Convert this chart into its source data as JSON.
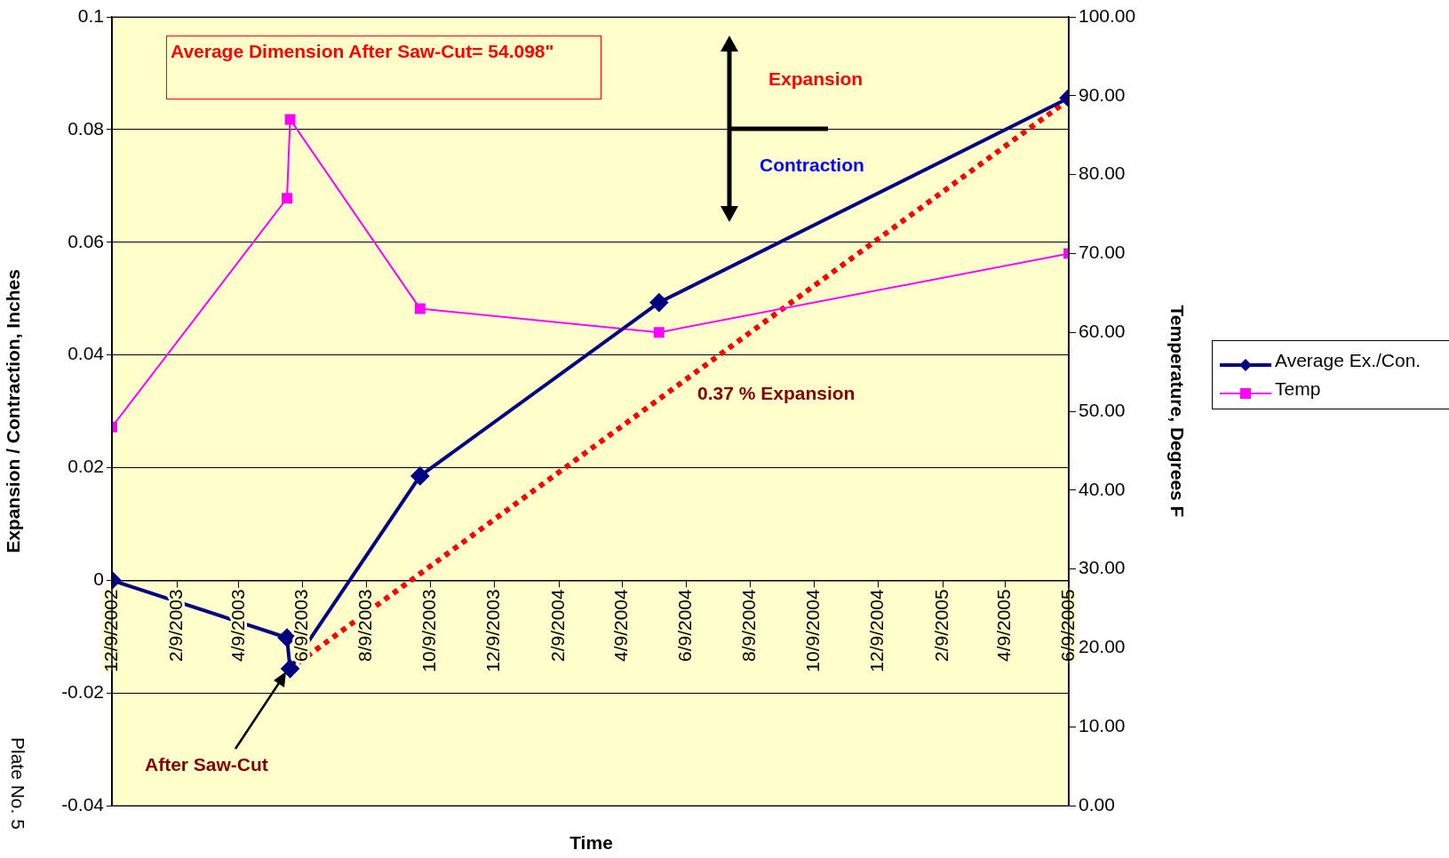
{
  "chart_data": {
    "type": "line",
    "xlabel": "Time",
    "ylabel": "Expansion / Contraction, Inches",
    "y2label": "Temperature, Degrees F",
    "annotations": [
      "Average Dimension After Saw-Cut= 54.098\"",
      "Expansion",
      "Contraction",
      "0.37 % Expansion",
      "After Saw-Cut",
      "Plate No. 5"
    ],
    "xlim": [
      "2002-12-09",
      "2005-06-09"
    ],
    "xticks": [
      {
        "value": "2002-12-09",
        "label": "12/9/2002"
      },
      {
        "value": "2003-02-09",
        "label": "2/9/2003"
      },
      {
        "value": "2003-04-09",
        "label": "4/9/2003"
      },
      {
        "value": "2003-06-09",
        "label": "6/9/2003"
      },
      {
        "value": "2003-08-09",
        "label": "8/9/2003"
      },
      {
        "value": "2003-10-09",
        "label": "10/9/2003"
      },
      {
        "value": "2003-12-09",
        "label": "12/9/2003"
      },
      {
        "value": "2004-02-09",
        "label": "2/9/2004"
      },
      {
        "value": "2004-04-09",
        "label": "4/9/2004"
      },
      {
        "value": "2004-06-09",
        "label": "6/9/2004"
      },
      {
        "value": "2004-08-09",
        "label": "8/9/2004"
      },
      {
        "value": "2004-10-09",
        "label": "10/9/2004"
      },
      {
        "value": "2004-12-09",
        "label": "12/9/2004"
      },
      {
        "value": "2005-02-09",
        "label": "2/9/2005"
      },
      {
        "value": "2005-04-09",
        "label": "4/9/2005"
      },
      {
        "value": "2005-06-09",
        "label": "6/9/2005"
      }
    ],
    "ylim": [
      -0.04,
      0.1
    ],
    "yticks": [
      -0.04,
      -0.02,
      0,
      0.02,
      0.04,
      0.06,
      0.08,
      0.1
    ],
    "y2lim": [
      0,
      100
    ],
    "y2ticks": [
      {
        "value": 0,
        "label": "0.00"
      },
      {
        "value": 10,
        "label": "10.00"
      },
      {
        "value": 20,
        "label": "20.00"
      },
      {
        "value": 30,
        "label": "30.00"
      },
      {
        "value": 40,
        "label": "40.00"
      },
      {
        "value": 50,
        "label": "50.00"
      },
      {
        "value": 60,
        "label": "60.00"
      },
      {
        "value": 70,
        "label": "70.00"
      },
      {
        "value": 80,
        "label": "80.00"
      },
      {
        "value": 90,
        "label": "90.00"
      },
      {
        "value": 100,
        "label": "100.00"
      }
    ],
    "grid": "y",
    "legend": "right",
    "series": [
      {
        "name": "Average Ex./Con.",
        "color": "#000080",
        "marker": "diamond",
        "x": [
          "2002-12-09",
          "2003-05-25",
          "2003-05-28",
          "2003-09-29",
          "2004-05-14",
          "2005-06-09"
        ],
        "values": [
          0,
          -0.0102,
          -0.0157,
          0.0185,
          0.0493,
          0.0856
        ]
      },
      {
        "name": "Temp",
        "color": "#ff00ff",
        "marker": "square",
        "axis": "y2",
        "x": [
          "2002-12-09",
          "2003-05-25",
          "2003-05-28",
          "2003-09-29",
          "2004-05-14",
          "2005-06-09"
        ],
        "values": [
          48,
          77,
          87,
          63,
          60,
          70
        ]
      },
      {
        "type": "line",
        "color": "#ff0000",
        "marker": "none",
        "line_style": "dotted",
        "x": [
          "2003-06-05",
          "2005-06-09"
        ],
        "values": [
          -0.0146,
          0.0853
        ]
      }
    ]
  }
}
